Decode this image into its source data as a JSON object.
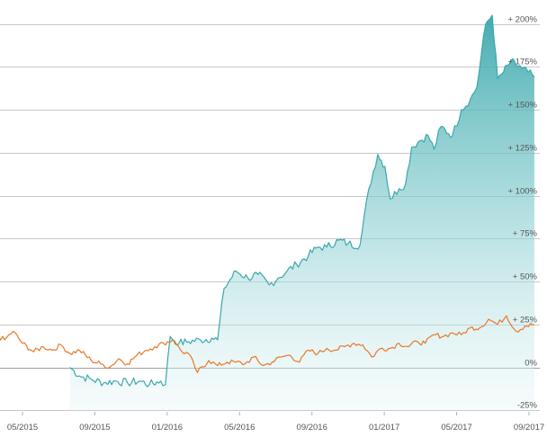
{
  "chart_data": {
    "type": "area",
    "title": "",
    "xlabel": "",
    "ylabel": "",
    "ylim": [
      -25,
      205
    ],
    "y_ticks": [
      200,
      175,
      150,
      125,
      100,
      75,
      50,
      25,
      0,
      -25
    ],
    "y_tick_labels": [
      "+ 200%",
      "+ 175%",
      "+ 150%",
      "+ 125%",
      "+ 100%",
      "+ 75%",
      "+ 50%",
      "+ 25%",
      "0%",
      "-25%"
    ],
    "x_ticks": [
      "05/2015",
      "09/2015",
      "01/2016",
      "05/2016",
      "09/2016",
      "01/2017",
      "05/2017",
      "09/2017"
    ],
    "grid": true,
    "legend": "none",
    "colors": {
      "teal": "#3aa8ac",
      "orange": "#e8792a",
      "grid": "#c8c8c8"
    },
    "series": [
      {
        "color": "#3aa8ac",
        "fill": true,
        "x": [
          "2015-07-20",
          "2015-08-05",
          "2015-08-25",
          "2015-09-15",
          "2015-10-05",
          "2015-10-25",
          "2015-11-15",
          "2015-12-01",
          "2015-12-20",
          "2015-12-28",
          "2016-01-05",
          "2016-01-20",
          "2016-02-05",
          "2016-02-25",
          "2016-03-15",
          "2016-03-25",
          "2016-04-05",
          "2016-04-25",
          "2016-05-15",
          "2016-06-01",
          "2016-06-20",
          "2016-07-05",
          "2016-07-20",
          "2016-08-05",
          "2016-08-25",
          "2016-09-10",
          "2016-09-25",
          "2016-10-15",
          "2016-10-31",
          "2016-11-20",
          "2016-12-05",
          "2016-12-20",
          "2017-01-01",
          "2017-01-10",
          "2017-01-25",
          "2017-02-05",
          "2017-02-15",
          "2017-03-01",
          "2017-03-15",
          "2017-03-25",
          "2017-04-05",
          "2017-04-25",
          "2017-05-10",
          "2017-05-25",
          "2017-06-05",
          "2017-06-20",
          "2017-07-01",
          "2017-07-10",
          "2017-07-20",
          "2017-08-01",
          "2017-08-20",
          "2017-09-10"
        ],
        "values": [
          0,
          -5,
          -7,
          -9,
          -8,
          -9,
          -8,
          -10,
          -8,
          -10,
          18,
          14,
          15,
          16,
          17,
          16,
          46,
          56,
          52,
          54,
          48,
          52,
          56,
          60,
          65,
          70,
          70,
          74,
          72,
          71,
          104,
          124,
          117,
          98,
          104,
          107,
          128,
          132,
          135,
          127,
          140,
          135,
          150,
          156,
          163,
          200,
          205,
          168,
          172,
          178,
          174,
          169
        ]
      },
      {
        "color": "#e8792a",
        "fill": false,
        "x": [
          "2015-03-15",
          "2015-04-01",
          "2015-04-15",
          "2015-05-01",
          "2015-05-20",
          "2015-06-05",
          "2015-06-20",
          "2015-07-05",
          "2015-07-20",
          "2015-08-05",
          "2015-08-25",
          "2015-09-10",
          "2015-09-25",
          "2015-10-10",
          "2015-10-25",
          "2015-11-10",
          "2015-11-25",
          "2015-12-10",
          "2015-12-25",
          "2016-01-10",
          "2016-01-25",
          "2016-02-05",
          "2016-02-20",
          "2016-03-10",
          "2016-03-25",
          "2016-04-10",
          "2016-04-25",
          "2016-05-10",
          "2016-05-25",
          "2016-06-10",
          "2016-06-25",
          "2016-07-10",
          "2016-07-25",
          "2016-08-10",
          "2016-08-25",
          "2016-09-10",
          "2016-09-25",
          "2016-10-10",
          "2016-10-25",
          "2016-11-10",
          "2016-11-25",
          "2016-12-10",
          "2016-12-25",
          "2017-01-10",
          "2017-01-25",
          "2017-02-10",
          "2017-02-25",
          "2017-03-10",
          "2017-03-25",
          "2017-04-10",
          "2017-04-25",
          "2017-05-10",
          "2017-05-25",
          "2017-06-10",
          "2017-06-25",
          "2017-07-10",
          "2017-07-25",
          "2017-08-10",
          "2017-08-25",
          "2017-09-10"
        ],
        "values": [
          19,
          16,
          21,
          14,
          9,
          12,
          10,
          13,
          8,
          10,
          4,
          2,
          0,
          5,
          2,
          7,
          10,
          12,
          14,
          16,
          9,
          8,
          -3,
          4,
          1,
          3,
          3,
          2,
          6,
          1,
          3,
          6,
          7,
          3,
          10,
          8,
          11,
          10,
          12,
          14,
          13,
          6,
          11,
          11,
          14,
          12,
          15,
          14,
          19,
          18,
          20,
          19,
          23,
          23,
          28,
          25,
          30,
          21,
          24,
          25
        ]
      }
    ]
  }
}
